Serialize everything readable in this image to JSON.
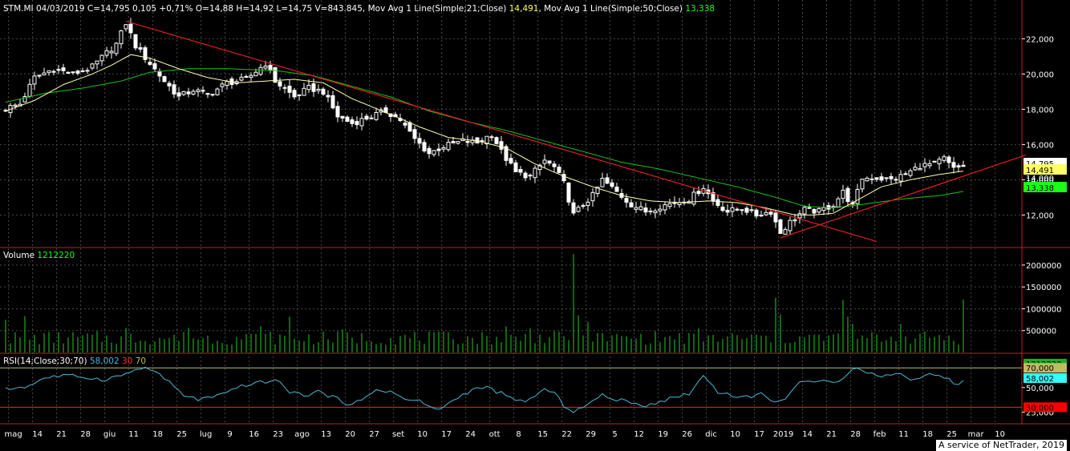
{
  "header": {
    "prefix": "STM.MI 04/03/2019 C=14,795 0,105 +0,71% O=14,88 H=14,92 L=14,75 V=843.845, ",
    "ma21_label": "Mov Avg 1 Line(Simple;21;Close) ",
    "ma21_value": "14,491",
    "ma50_label": ", Mov Avg 1 Line(Simple;50;Close) ",
    "ma50_value": "13,338"
  },
  "volume_header": {
    "label": "Volume ",
    "value": "1212220"
  },
  "rsi_header": {
    "label": "RSI(14;Close;30;70) ",
    "value": "58,002",
    "low": "30",
    "high": "70"
  },
  "credit": "A service of NetTrader, 2019",
  "colors": {
    "background": "#000000",
    "grid": "#4a4a4a",
    "candle": "#ffffff",
    "ma21": "#ffffb0",
    "ma50": "#19c219",
    "trendline": "#e02020",
    "volume": "#1faa1f",
    "rsi": "#4ab8d6",
    "rsi_band": "#bdbd63",
    "rsi_30": "#ff0000",
    "price_tag": "#ffffff"
  },
  "chart_data": [
    {
      "type": "candlestick",
      "title": "STM.MI",
      "ylim": [
        10.2,
        24.2
      ],
      "y_ticks": [
        "12,000",
        "14,000",
        "16,000",
        "18,000",
        "20,000",
        "22,000"
      ],
      "y_tick_values": [
        12,
        14,
        16,
        18,
        20,
        22
      ],
      "x_ticks": [
        "mag",
        "14",
        "21",
        "28",
        "giu",
        "11",
        "18",
        "25",
        "lug",
        "9",
        "16",
        "23",
        "ago",
        "13",
        "20",
        "27",
        "set",
        "10",
        "17",
        "24",
        "ott",
        "8",
        "15",
        "22",
        "29",
        "5",
        "12",
        "19",
        "26",
        "dic",
        "10",
        "17",
        "2019",
        "14",
        "21",
        "28",
        "feb",
        "11",
        "18",
        "25",
        "mar",
        "10"
      ],
      "x_tick_pos": [
        0.6,
        5.6,
        10.6,
        15.6,
        20.6,
        25.6,
        30.6,
        35.6,
        40.6,
        45.6,
        50.6,
        55.6,
        60.6,
        65.6,
        70.6,
        75.6,
        80.6,
        85.6,
        90.6,
        95.6,
        100.6,
        105.6,
        110.6,
        115.6,
        120.6,
        125.6,
        130.6,
        135.6,
        140.6,
        145.6,
        150.6,
        155.6,
        160.6,
        165.6,
        170.6,
        175.6,
        180.6,
        185.6,
        190.6,
        195.6,
        200.6,
        205.6
      ],
      "close_anchors": [
        [
          0,
          18.05
        ],
        [
          3,
          18.3
        ],
        [
          6,
          19.8
        ],
        [
          10,
          20.3
        ],
        [
          14,
          20.0
        ],
        [
          18,
          20.4
        ],
        [
          21,
          21.2
        ],
        [
          23,
          21.7
        ],
        [
          25,
          22.9
        ],
        [
          27,
          21.6
        ],
        [
          30,
          20.6
        ],
        [
          33,
          19.6
        ],
        [
          36,
          18.7
        ],
        [
          39,
          19.1
        ],
        [
          42,
          18.8
        ],
        [
          46,
          19.5
        ],
        [
          50,
          19.7
        ],
        [
          54,
          20.6
        ],
        [
          56,
          19.6
        ],
        [
          60,
          18.7
        ],
        [
          63,
          19.2
        ],
        [
          66,
          19.0
        ],
        [
          69,
          17.6
        ],
        [
          72,
          17.2
        ],
        [
          76,
          17.6
        ],
        [
          79,
          17.9
        ],
        [
          82,
          17.4
        ],
        [
          85,
          16.3
        ],
        [
          88,
          15.5
        ],
        [
          91,
          15.9
        ],
        [
          95,
          16.2
        ],
        [
          98,
          16.1
        ],
        [
          101,
          16.6
        ],
        [
          103,
          15.6
        ],
        [
          106,
          14.4
        ],
        [
          109,
          14.2
        ],
        [
          112,
          15.1
        ],
        [
          114,
          14.7
        ],
        [
          116,
          13.8
        ],
        [
          118,
          12.0
        ],
        [
          120,
          12.6
        ],
        [
          122,
          13.1
        ],
        [
          124,
          14.0
        ],
        [
          127,
          13.3
        ],
        [
          130,
          12.6
        ],
        [
          133,
          12.2
        ],
        [
          136,
          12.5
        ],
        [
          139,
          12.7
        ],
        [
          142,
          12.9
        ],
        [
          145,
          13.6
        ],
        [
          147,
          12.8
        ],
        [
          150,
          12.2
        ],
        [
          153,
          12.4
        ],
        [
          156,
          12.0
        ],
        [
          159,
          12.2
        ],
        [
          161,
          11.0
        ],
        [
          163,
          11.6
        ],
        [
          166,
          12.3
        ],
        [
          169,
          12.2
        ],
        [
          172,
          12.6
        ],
        [
          174,
          13.3
        ],
        [
          176,
          12.5
        ],
        [
          178,
          14.1
        ],
        [
          181,
          14.1
        ],
        [
          184,
          14.0
        ],
        [
          187,
          14.3
        ],
        [
          190,
          14.8
        ],
        [
          193,
          14.9
        ],
        [
          195,
          15.2
        ],
        [
          197,
          14.6
        ],
        [
          199,
          14.795
        ]
      ],
      "ma21_anchors": [
        [
          0,
          17.9
        ],
        [
          6,
          18.5
        ],
        [
          12,
          19.4
        ],
        [
          18,
          20.0
        ],
        [
          22,
          20.5
        ],
        [
          26,
          21.1
        ],
        [
          30,
          20.9
        ],
        [
          36,
          20.3
        ],
        [
          42,
          19.8
        ],
        [
          48,
          19.5
        ],
        [
          54,
          19.6
        ],
        [
          60,
          19.7
        ],
        [
          66,
          19.5
        ],
        [
          72,
          18.6
        ],
        [
          80,
          17.7
        ],
        [
          86,
          17.0
        ],
        [
          92,
          16.4
        ],
        [
          98,
          16.2
        ],
        [
          104,
          15.8
        ],
        [
          110,
          14.9
        ],
        [
          116,
          14.2
        ],
        [
          122,
          13.6
        ],
        [
          128,
          13.1
        ],
        [
          134,
          12.8
        ],
        [
          140,
          12.7
        ],
        [
          146,
          12.8
        ],
        [
          152,
          12.7
        ],
        [
          158,
          12.4
        ],
        [
          164,
          12.0
        ],
        [
          168,
          12.0
        ],
        [
          172,
          12.1
        ],
        [
          176,
          12.7
        ],
        [
          182,
          13.6
        ],
        [
          188,
          14.0
        ],
        [
          194,
          14.3
        ],
        [
          199,
          14.491
        ]
      ],
      "ma50_anchors": [
        [
          0,
          18.4
        ],
        [
          8,
          18.9
        ],
        [
          16,
          19.2
        ],
        [
          24,
          19.6
        ],
        [
          30,
          20.1
        ],
        [
          38,
          20.3
        ],
        [
          46,
          20.3
        ],
        [
          56,
          20.2
        ],
        [
          64,
          19.9
        ],
        [
          72,
          19.3
        ],
        [
          80,
          18.7
        ],
        [
          88,
          17.9
        ],
        [
          96,
          17.3
        ],
        [
          104,
          16.8
        ],
        [
          112,
          16.2
        ],
        [
          120,
          15.6
        ],
        [
          128,
          15.0
        ],
        [
          136,
          14.6
        ],
        [
          144,
          14.1
        ],
        [
          152,
          13.6
        ],
        [
          160,
          13.0
        ],
        [
          166,
          12.5
        ],
        [
          172,
          12.4
        ],
        [
          178,
          12.6
        ],
        [
          186,
          12.9
        ],
        [
          194,
          13.1
        ],
        [
          199,
          13.338
        ]
      ],
      "trendline_down": [
        [
          25,
          23.0
        ],
        [
          181,
          10.5
        ]
      ],
      "trendline_up": [
        [
          161,
          10.7
        ],
        [
          212,
          15.4
        ]
      ],
      "price_tags": [
        {
          "label": "14,795",
          "value": 14.795,
          "color": "#ffffff"
        },
        {
          "label": "14,491",
          "value": 14.491,
          "color": "#ffff66"
        },
        {
          "label": "14,000",
          "value": 14.0,
          "color": "#ffffff",
          "tick": true
        },
        {
          "label": "13,338",
          "value": 13.338,
          "color": "#19ff19"
        }
      ]
    },
    {
      "type": "bar",
      "title": "Volume",
      "ylim": [
        0,
        2200000
      ],
      "y_ticks": [
        "500000",
        "1000000",
        "1500000",
        "2000000"
      ],
      "y_tick_values": [
        500000,
        1000000,
        1500000,
        2000000
      ],
      "base": 350000,
      "spikes": [
        [
          0,
          750000
        ],
        [
          4,
          830000
        ],
        [
          25,
          560000
        ],
        [
          38,
          560000
        ],
        [
          53,
          600000
        ],
        [
          59,
          820000
        ],
        [
          70,
          530000
        ],
        [
          88,
          480000
        ],
        [
          104,
          600000
        ],
        [
          109,
          550000
        ],
        [
          118,
          2250000
        ],
        [
          119,
          850000
        ],
        [
          121,
          700000
        ],
        [
          144,
          550000
        ],
        [
          160,
          1250000
        ],
        [
          161,
          870000
        ],
        [
          174,
          1200000
        ],
        [
          175,
          820000
        ],
        [
          176,
          650000
        ],
        [
          186,
          650000
        ],
        [
          194,
          400000
        ],
        [
          199,
          1212220
        ]
      ],
      "last_value": "1212220"
    },
    {
      "type": "line",
      "title": "RSI",
      "ylim": [
        14,
        84
      ],
      "y_ticks": [
        "25,000",
        "50,000"
      ],
      "y_tick_values": [
        25,
        50
      ],
      "levels": [
        30,
        70
      ],
      "anchors": [
        [
          0,
          48
        ],
        [
          5,
          52
        ],
        [
          8,
          60
        ],
        [
          12,
          62
        ],
        [
          16,
          61
        ],
        [
          20,
          58
        ],
        [
          24,
          62
        ],
        [
          28,
          70
        ],
        [
          31,
          67
        ],
        [
          34,
          55
        ],
        [
          37,
          42
        ],
        [
          40,
          38
        ],
        [
          43,
          40
        ],
        [
          46,
          44
        ],
        [
          49,
          52
        ],
        [
          53,
          55
        ],
        [
          56,
          58
        ],
        [
          59,
          46
        ],
        [
          62,
          42
        ],
        [
          65,
          46
        ],
        [
          68,
          40
        ],
        [
          71,
          34
        ],
        [
          74,
          36
        ],
        [
          77,
          48
        ],
        [
          80,
          46
        ],
        [
          83,
          38
        ],
        [
          86,
          36
        ],
        [
          89,
          28
        ],
        [
          91,
          30
        ],
        [
          94,
          40
        ],
        [
          97,
          48
        ],
        [
          100,
          50
        ],
        [
          103,
          44
        ],
        [
          106,
          36
        ],
        [
          109,
          38
        ],
        [
          112,
          48
        ],
        [
          114,
          44
        ],
        [
          116,
          32
        ],
        [
          118,
          26
        ],
        [
          120,
          30
        ],
        [
          122,
          36
        ],
        [
          124,
          42
        ],
        [
          127,
          38
        ],
        [
          130,
          34
        ],
        [
          133,
          32
        ],
        [
          136,
          36
        ],
        [
          139,
          40
        ],
        [
          142,
          44
        ],
        [
          145,
          62
        ],
        [
          148,
          46
        ],
        [
          151,
          42
        ],
        [
          154,
          40
        ],
        [
          157,
          44
        ],
        [
          160,
          34
        ],
        [
          162,
          40
        ],
        [
          165,
          56
        ],
        [
          168,
          54
        ],
        [
          171,
          58
        ],
        [
          173,
          56
        ],
        [
          176,
          70
        ],
        [
          179,
          66
        ],
        [
          182,
          60
        ],
        [
          185,
          66
        ],
        [
          188,
          58
        ],
        [
          191,
          62
        ],
        [
          194,
          64
        ],
        [
          196,
          58
        ],
        [
          198,
          52
        ],
        [
          199,
          58.002
        ]
      ],
      "tags": [
        {
          "label": "70,000",
          "value": 70,
          "color": "#bdbd63"
        },
        {
          "label": "58,002",
          "value": 58.002,
          "color": "#33ffff"
        },
        {
          "label": "30,000",
          "value": 30,
          "color": "#ff0000"
        }
      ]
    }
  ]
}
